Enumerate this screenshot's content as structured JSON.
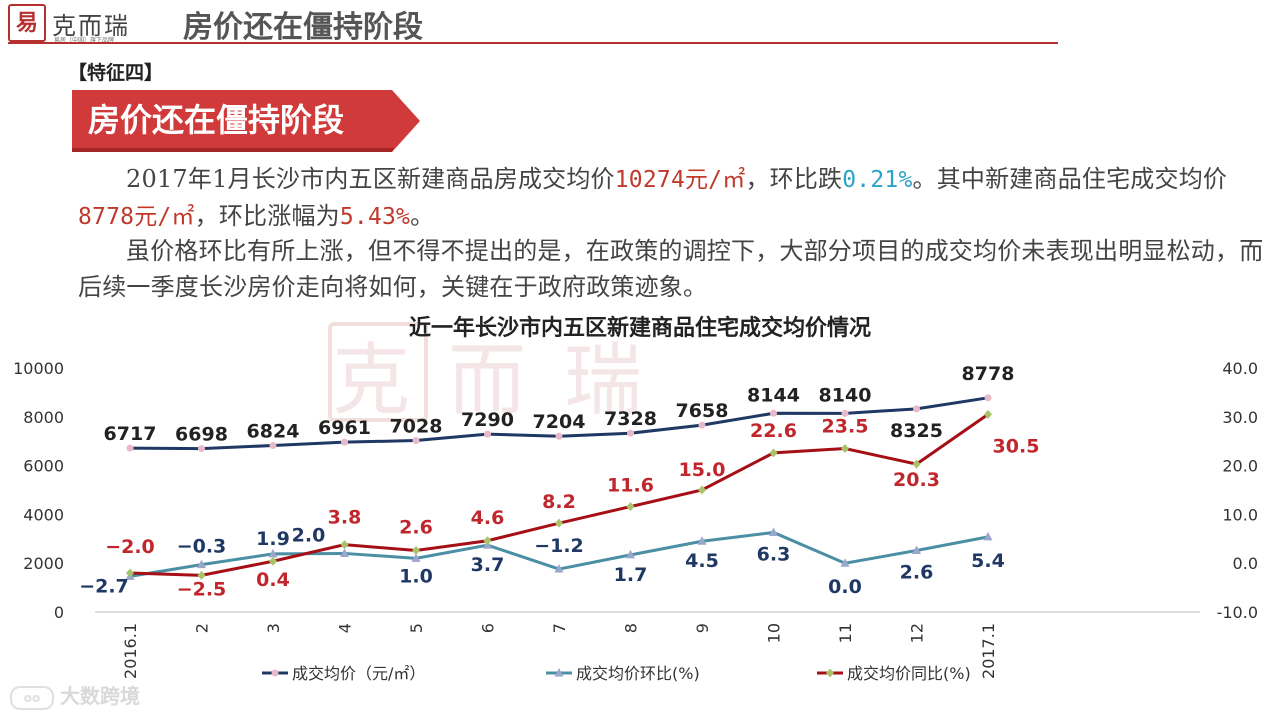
{
  "header": {
    "logo_text": "克而瑞",
    "logo_mark": "易",
    "logo_sub": "易居（中国）旗下品牌",
    "title": "房价还在僵持阶段"
  },
  "feature_tag": "【特征四】",
  "banner": {
    "title": "房价还在僵持阶段"
  },
  "paragraphs": {
    "p1": {
      "a": "2017年1月长沙市内五区新建商品房成交均价",
      "price1": "10274元/㎡",
      "b": "，环比跌",
      "pct1": "0.21%",
      "c": "。其中新建商品住宅成交均价",
      "price2": "8778元/㎡",
      "d": "，环比涨幅为",
      "pct2": "5.43%",
      "e": "。"
    },
    "p2": "虽价格环比有所上涨，但不得不提出的是，在政策的调控下，大部分项目的成交均价未表现出明显松动，而后续一季度长沙房价走向将如何，关键在于政府政策迹象。"
  },
  "footer": {
    "watermark": "大数跨境"
  },
  "colors": {
    "accent": "#b5302f",
    "price_line": "#1f3864",
    "mom_line": "#4a8fa3",
    "yoy_line": "#a50f15"
  },
  "chart_data": {
    "type": "line",
    "title": "近一年长沙市内五区新建商品住宅成交均价情况",
    "categories": [
      "2016.1",
      "2",
      "3",
      "4",
      "5",
      "6",
      "7",
      "8",
      "9",
      "10",
      "11",
      "12",
      "2017.1"
    ],
    "y_left": {
      "ticks": [
        "0",
        "2000",
        "4000",
        "6000",
        "8000",
        "10000"
      ],
      "range": [
        0,
        10000
      ]
    },
    "y_right": {
      "ticks": [
        "-10.0",
        "0.0",
        "10.0",
        "20.0",
        "30.0",
        "40.0"
      ],
      "range": [
        -10,
        40
      ]
    },
    "series": [
      {
        "name": "成交均价（元/㎡）",
        "axis": "left",
        "values": [
          6717,
          6698,
          6824,
          6961,
          7028,
          7290,
          7204,
          7328,
          7658,
          8144,
          8140,
          8325,
          8778
        ],
        "labels": [
          "6717",
          "6698",
          "6824",
          "6961",
          "7028",
          "7290",
          "7204",
          "7328",
          "7658",
          "8144",
          "8140",
          "8325",
          "8778"
        ]
      },
      {
        "name": "成交均价环比(%)",
        "axis": "right",
        "values": [
          -2.7,
          -0.3,
          1.9,
          2.0,
          1.0,
          3.7,
          -1.2,
          1.7,
          4.5,
          6.3,
          0.0,
          2.6,
          5.4
        ],
        "labels": [
          "−2.7",
          "−0.3",
          "1.9",
          "2.0",
          "1.0",
          "3.7",
          "−1.2",
          "1.7",
          "4.5",
          "6.3",
          "0.0",
          "2.6",
          "5.4"
        ]
      },
      {
        "name": "成交均价同比(%)",
        "axis": "right",
        "values": [
          -2.0,
          -2.5,
          0.4,
          3.8,
          2.6,
          4.6,
          8.2,
          11.6,
          15.0,
          22.6,
          23.5,
          20.3,
          30.5
        ],
        "labels": [
          "−2.0",
          "−2.5",
          "0.4",
          "3.8",
          "2.6",
          "4.6",
          "8.2",
          "11.6",
          "15.0",
          "22.6",
          "23.5",
          "20.3",
          "30.5"
        ]
      }
    ],
    "legend": "bottom"
  }
}
